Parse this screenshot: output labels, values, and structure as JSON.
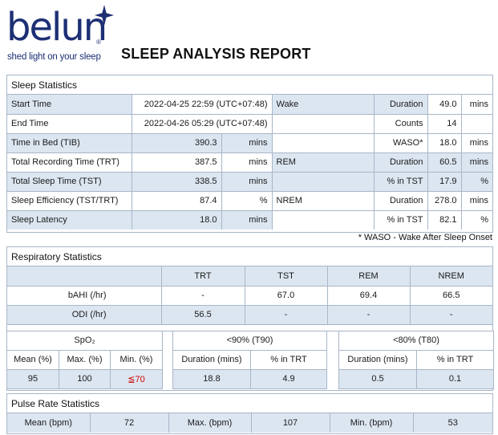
{
  "brand": {
    "name": "belun",
    "registered_mark": "®",
    "tagline": "shed light on your sleep",
    "color": "#1d2f74"
  },
  "report_title": "SLEEP ANALYSIS REPORT",
  "colors": {
    "shaded_cell": "#dce6f1",
    "border": "#a8b6c8",
    "alert_text": "#d00000"
  },
  "sleep": {
    "heading": "Sleep Statistics",
    "left": [
      {
        "label": "Start Time",
        "value": "2022-04-25 22:59 (UTC+07:48)",
        "unit": ""
      },
      {
        "label": "End Time",
        "value": "2022-04-26 05:29 (UTC+07:48)",
        "unit": ""
      },
      {
        "label": "Time in Bed (TIB)",
        "value": "390.3",
        "unit": "mins"
      },
      {
        "label": "Total Recording Time (TRT)",
        "value": "387.5",
        "unit": "mins"
      },
      {
        "label": "Total Sleep Time (TST)",
        "value": "338.5",
        "unit": "mins"
      },
      {
        "label": "Sleep Efficiency (TST/TRT)",
        "value": "87.4",
        "unit": "%"
      },
      {
        "label": "Sleep Latency",
        "value": "18.0",
        "unit": "mins"
      }
    ],
    "right": [
      {
        "group": "Wake",
        "metric": "Duration",
        "value": "49.0",
        "unit": "mins"
      },
      {
        "group": "",
        "metric": "Counts",
        "value": "14",
        "unit": ""
      },
      {
        "group": "",
        "metric": "WASO*",
        "value": "18.0",
        "unit": "mins"
      },
      {
        "group": "REM",
        "metric": "Duration",
        "value": "60.5",
        "unit": "mins"
      },
      {
        "group": "",
        "metric": "% in TST",
        "value": "17.9",
        "unit": "%"
      },
      {
        "group": "NREM",
        "metric": "Duration",
        "value": "278.0",
        "unit": "mins"
      },
      {
        "group": "",
        "metric": "% in TST",
        "value": "82.1",
        "unit": "%"
      }
    ],
    "footnote": "* WASO - Wake After Sleep Onset"
  },
  "respiratory": {
    "heading": "Respiratory Statistics",
    "columns": [
      "TRT",
      "TST",
      "REM",
      "NREM"
    ],
    "rows": [
      {
        "label": "bAHI (/hr)",
        "values": [
          "-",
          "67.0",
          "69.4",
          "66.5"
        ]
      },
      {
        "label": "ODI (/hr)",
        "values": [
          "56.5",
          "-",
          "-",
          "-"
        ]
      }
    ],
    "spo2": {
      "title": "SpO₂",
      "headers": [
        "Mean (%)",
        "Max. (%)",
        "Min. (%)"
      ],
      "values": [
        "95",
        "100",
        "≦70"
      ]
    },
    "t90": {
      "title": "<90% (T90)",
      "headers": [
        "Duration (mins)",
        "% in TRT"
      ],
      "values": [
        "18.8",
        "4.9"
      ]
    },
    "t80": {
      "title": "<80% (T80)",
      "headers": [
        "Duration (mins)",
        "% in TRT"
      ],
      "values": [
        "0.5",
        "0.1"
      ]
    }
  },
  "pulse": {
    "heading": "Pulse Rate Statistics",
    "items": [
      {
        "label": "Mean (bpm)",
        "value": "72"
      },
      {
        "label": "Max. (bpm)",
        "value": "107"
      },
      {
        "label": "Min. (bpm)",
        "value": "53"
      }
    ]
  }
}
